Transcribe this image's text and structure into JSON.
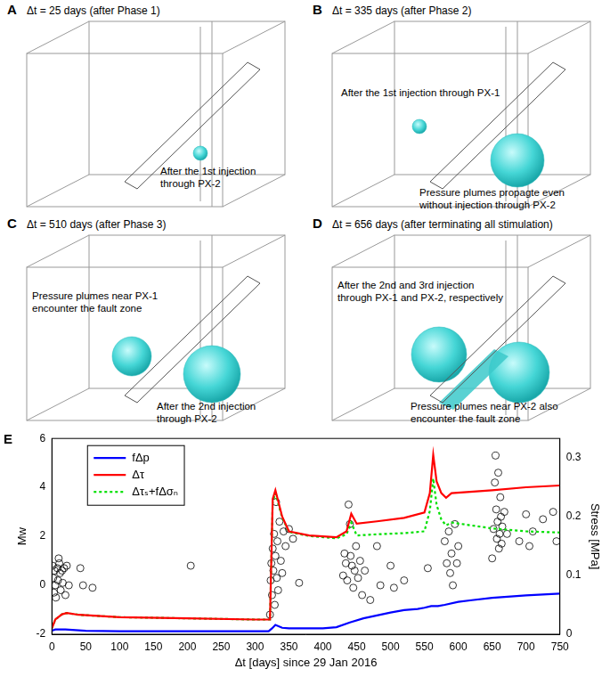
{
  "panels": [
    {
      "label": "A",
      "title": "Δt = 25 days (after Phase 1)",
      "notes": [
        [
          "After the 1st injection",
          "through PX-2"
        ]
      ]
    },
    {
      "label": "B",
      "title": "Δt = 335 days (after Phase 2)",
      "notes": [
        [
          "After the 1st injection",
          "through PX-1"
        ],
        [
          "Pressure plumes propagte even",
          "without injection through PX-2"
        ]
      ]
    },
    {
      "label": "C",
      "title": "Δt = 510 days (after Phase 3)",
      "notes": [
        [
          "Pressure plumes near PX-1",
          "encounter the fault zone"
        ],
        [
          "After the 2nd injection",
          "through PX-2"
        ]
      ]
    },
    {
      "label": "D",
      "title": "Δt = 656 days (after terminating all stimulation)",
      "notes": [
        [
          "After the 2nd and 3rd injection",
          "through PX-1 and PX-2, respectively"
        ],
        [
          "Pressure plumes near PX-2 also",
          "encounter the fault zone"
        ]
      ]
    }
  ],
  "chart_data": {
    "type": "scatter",
    "label": "E",
    "x_label": "Δt [days] since 29 Jan 2016",
    "y_label": "Mw",
    "y2_label": "Stress [MPa]",
    "xlim": [
      0,
      750
    ],
    "xticks": [
      0,
      50,
      100,
      150,
      200,
      250,
      300,
      350,
      400,
      450,
      500,
      550,
      600,
      650,
      700,
      750
    ],
    "ylim": [
      -2,
      6
    ],
    "yticks": [
      -2,
      0,
      2,
      4,
      6
    ],
    "y2lim": [
      0,
      0.333
    ],
    "y2ticks": [
      0,
      0.1,
      0.2,
      0.3
    ],
    "grid": false,
    "legend": "upper left",
    "series": [
      {
        "type": "scatter",
        "marker": "circle",
        "color": "#000000",
        "x": [
          1,
          2,
          3,
          4,
          5,
          6,
          8,
          9,
          10,
          11,
          12,
          13,
          15,
          16,
          18,
          20,
          22,
          25,
          42,
          46,
          60,
          205,
          322,
          323,
          324,
          325,
          326,
          327,
          328,
          329,
          330,
          331,
          332,
          333,
          334,
          336,
          338,
          340,
          342,
          345,
          350,
          356,
          365,
          430,
          432,
          434,
          436,
          438,
          440,
          441,
          443,
          445,
          447,
          449,
          452,
          455,
          458,
          462,
          470,
          480,
          485,
          500,
          505,
          520,
          555,
          580,
          583,
          586,
          588,
          590,
          592,
          595,
          598,
          600,
          650,
          652,
          654,
          655,
          656,
          657,
          658,
          659,
          660,
          661,
          662,
          663,
          664,
          665,
          668,
          672,
          690,
          700,
          705,
          710,
          725,
          740,
          745
        ],
        "values": [
          0.8,
          0.3,
          -0.3,
          0.6,
          0.0,
          -0.5,
          0.7,
          0.2,
          1.1,
          0.9,
          0.5,
          -0.2,
          0.6,
          0.1,
          0.7,
          -0.4,
          0.8,
          0.0,
          0.7,
          0.0,
          -0.1,
          0.8,
          -1.2,
          0.2,
          0.9,
          -0.4,
          1.5,
          0.6,
          2.1,
          -0.8,
          1.2,
          3.4,
          0.3,
          1.8,
          -0.2,
          2.6,
          1.0,
          0.5,
          2.2,
          1.6,
          2.3,
          1.9,
          0.1,
          0.4,
          1.3,
          0.9,
          0.2,
          3.3,
          2.5,
          1.2,
          0.8,
          -0.1,
          0.6,
          1.6,
          0.3,
          1.0,
          -0.4,
          0.6,
          -0.6,
          1.6,
          0.0,
          0.8,
          -0.1,
          0.2,
          0.7,
          1.8,
          0.9,
          2.2,
          0.5,
          1.3,
          0.0,
          2.5,
          0.9,
          1.6,
          1.1,
          2.3,
          4.2,
          5.3,
          3.1,
          1.9,
          2.6,
          4.6,
          1.5,
          2.1,
          3.6,
          2.8,
          1.7,
          2.4,
          3.0,
          2.1,
          1.8,
          2.9,
          1.6,
          2.2,
          2.7,
          3.0,
          1.8
        ]
      },
      {
        "name": "fΔp",
        "type": "line",
        "axis": "y2",
        "color": "#0000ff",
        "line_style": "solid",
        "x": [
          0,
          5,
          20,
          50,
          100,
          200,
          300,
          320,
          325,
          330,
          340,
          350,
          400,
          420,
          440,
          460,
          480,
          500,
          520,
          540,
          550,
          560,
          570,
          580,
          600,
          620,
          650,
          700,
          750
        ],
        "values": [
          0.006,
          0.008,
          0.008,
          0.006,
          0.005,
          0.005,
          0.005,
          0.005,
          0.01,
          0.016,
          0.011,
          0.01,
          0.01,
          0.012,
          0.02,
          0.027,
          0.032,
          0.037,
          0.041,
          0.043,
          0.045,
          0.048,
          0.048,
          0.05,
          0.055,
          0.058,
          0.062,
          0.066,
          0.069
        ]
      },
      {
        "name": "Δτ",
        "type": "line",
        "axis": "y2",
        "color": "#ff0000",
        "line_style": "solid",
        "x": [
          0,
          5,
          15,
          22,
          40,
          100,
          200,
          300,
          322,
          326,
          330,
          340,
          350,
          380,
          420,
          435,
          442,
          450,
          480,
          520,
          550,
          558,
          563,
          568,
          575,
          582,
          590,
          650,
          700,
          750
        ],
        "values": [
          0.01,
          0.025,
          0.034,
          0.036,
          0.033,
          0.029,
          0.027,
          0.025,
          0.025,
          0.23,
          0.245,
          0.2,
          0.175,
          0.168,
          0.165,
          0.175,
          0.205,
          0.188,
          0.192,
          0.198,
          0.207,
          0.24,
          0.305,
          0.26,
          0.24,
          0.232,
          0.24,
          0.245,
          0.25,
          0.253
        ]
      },
      {
        "name": "Δτₛ+fΔσₙ",
        "type": "line",
        "axis": "y2",
        "color": "#00e000",
        "line_style": "dotted",
        "x": [
          0,
          5,
          15,
          22,
          40,
          100,
          200,
          300,
          322,
          326,
          330,
          340,
          350,
          380,
          420,
          435,
          442,
          450,
          480,
          520,
          550,
          558,
          563,
          568,
          575,
          582,
          590,
          650,
          700,
          750
        ],
        "values": [
          0.01,
          0.025,
          0.034,
          0.036,
          0.033,
          0.029,
          0.027,
          0.025,
          0.025,
          0.225,
          0.24,
          0.198,
          0.174,
          0.167,
          0.163,
          0.17,
          0.19,
          0.168,
          0.17,
          0.172,
          0.175,
          0.21,
          0.265,
          0.22,
          0.195,
          0.185,
          0.19,
          0.18,
          0.175,
          0.173
        ]
      }
    ]
  }
}
